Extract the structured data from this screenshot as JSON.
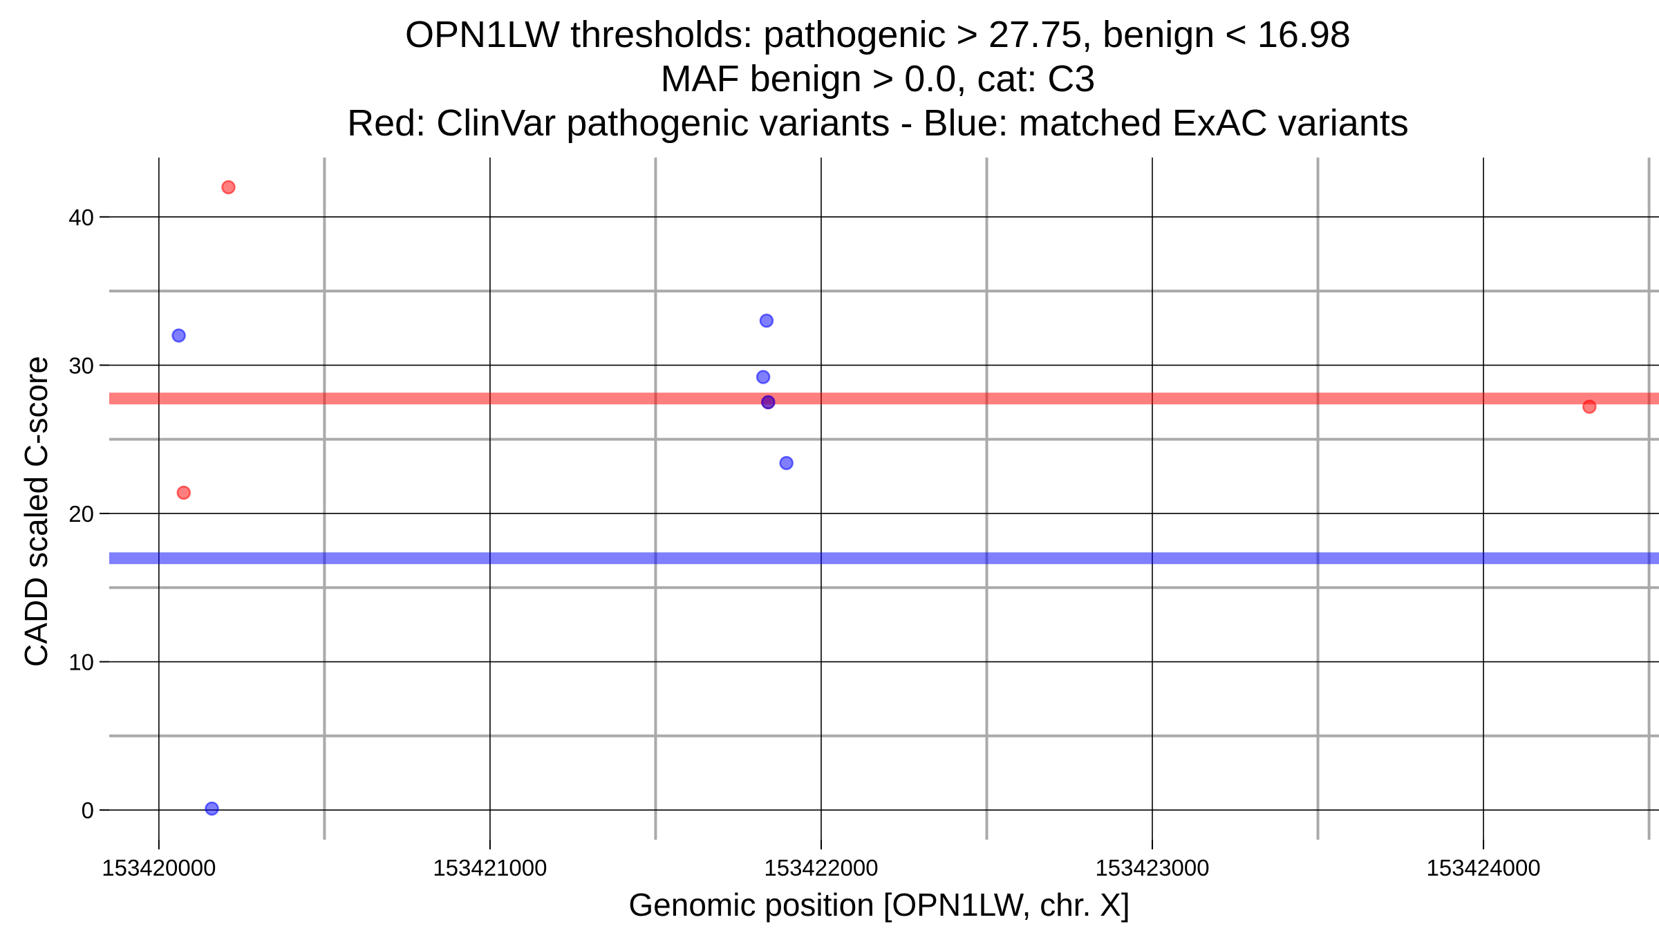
{
  "chart_data": {
    "type": "scatter",
    "title": [
      "OPN1LW thresholds: pathogenic > 27.75, benign < 16.98",
      "MAF benign > 0.0, cat: C3",
      "Red: ClinVar pathogenic variants - Blue: matched ExAC variants"
    ],
    "xlabel": "Genomic position [OPN1LW, chr. X]",
    "ylabel": "CADD scaled C-score",
    "xlim": [
      153419850,
      153424530
    ],
    "ylim": [
      -2,
      44
    ],
    "x_ticks": [
      153420000,
      153421000,
      153422000,
      153423000,
      153424000
    ],
    "x_minor_ticks": [
      153420500,
      153421500,
      153422500,
      153423500,
      153424500
    ],
    "y_ticks": [
      0,
      10,
      20,
      30,
      40
    ],
    "y_minor_ticks": [
      5,
      15,
      25,
      35
    ],
    "grid": true,
    "legend": "none",
    "colors": {
      "pathogenic": "#ff0000",
      "benign": "#0000ff",
      "grid_major": "#000000",
      "grid_minor": "#aaaaaa"
    },
    "thresholds": [
      {
        "value": 27.75,
        "color": "#ff0000"
      },
      {
        "value": 16.98,
        "color": "#0000ff"
      }
    ],
    "series": [
      {
        "color": "#ff0000",
        "points": [
          {
            "x": 153420210,
            "y": 42.0
          },
          {
            "x": 153420075,
            "y": 21.4
          },
          {
            "x": 153421840,
            "y": 27.5
          },
          {
            "x": 153424320,
            "y": 27.2
          }
        ]
      },
      {
        "color": "#0000ff",
        "points": [
          {
            "x": 153420060,
            "y": 32.0
          },
          {
            "x": 153420160,
            "y": 0.1
          },
          {
            "x": 153421835,
            "y": 33.0
          },
          {
            "x": 153421825,
            "y": 29.2
          },
          {
            "x": 153421840,
            "y": 27.5
          },
          {
            "x": 153421895,
            "y": 23.4
          }
        ]
      }
    ]
  }
}
